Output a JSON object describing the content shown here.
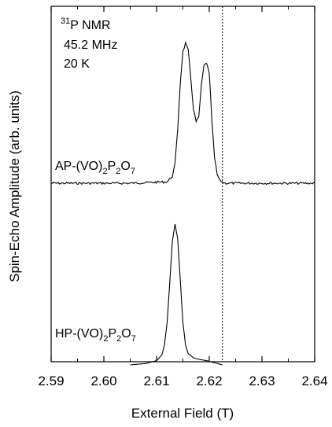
{
  "chart_data": {
    "type": "line",
    "title": "",
    "xlabel": "External Field (T)",
    "ylabel": "Spin-Echo Amplitude (arb. units)",
    "xlim": [
      2.59,
      2.64
    ],
    "x_ticks": [
      "2.59",
      "2.60",
      "2.61",
      "2.62",
      "2.63",
      "2.64"
    ],
    "y_ticks_labeled": false,
    "grid": false,
    "legend": "none",
    "annotation": {
      "nucleus_mass": "31",
      "nucleus_rest": "P NMR",
      "frequency": "45.2 MHz",
      "temperature": "20 K"
    },
    "reference_line": {
      "x": 2.6225,
      "style": "dotted"
    },
    "series": [
      {
        "name": "AP-(VO)2P2O7",
        "label_parts": {
          "prefix": "AP-(VO)",
          "sub1": "2",
          "mid": "P",
          "sub2": "2",
          "mid2": "O",
          "sub3": "7"
        },
        "x": [
          2.59,
          2.605,
          2.612,
          2.613,
          2.6135,
          2.614,
          2.6145,
          2.615,
          2.6155,
          2.616,
          2.6165,
          2.617,
          2.6175,
          2.618,
          2.6185,
          2.619,
          2.6195,
          2.62,
          2.6205,
          2.621,
          2.6215,
          2.622,
          2.623,
          2.64
        ],
        "y": [
          0,
          0,
          0.01,
          0.05,
          0.14,
          0.38,
          0.72,
          0.94,
          1.0,
          0.95,
          0.75,
          0.53,
          0.44,
          0.47,
          0.7,
          0.84,
          0.86,
          0.78,
          0.45,
          0.18,
          0.06,
          0.02,
          0,
          0
        ]
      },
      {
        "name": "HP-(VO)2P2O7",
        "label_parts": {
          "prefix": "HP-(VO)",
          "sub1": "2",
          "mid": "P",
          "sub2": "2",
          "mid2": "O",
          "sub3": "7"
        },
        "x": [
          2.605,
          2.608,
          2.61,
          2.611,
          2.6115,
          2.612,
          2.6125,
          2.613,
          2.6135,
          2.614,
          2.6145,
          2.615,
          2.6155,
          2.616,
          2.617,
          2.618,
          2.6195,
          2.6225
        ],
        "y": [
          0,
          0.01,
          0.03,
          0.07,
          0.14,
          0.3,
          0.58,
          0.88,
          1.0,
          0.9,
          0.6,
          0.3,
          0.14,
          0.08,
          0.05,
          0.04,
          0.03,
          0
        ]
      }
    ]
  }
}
